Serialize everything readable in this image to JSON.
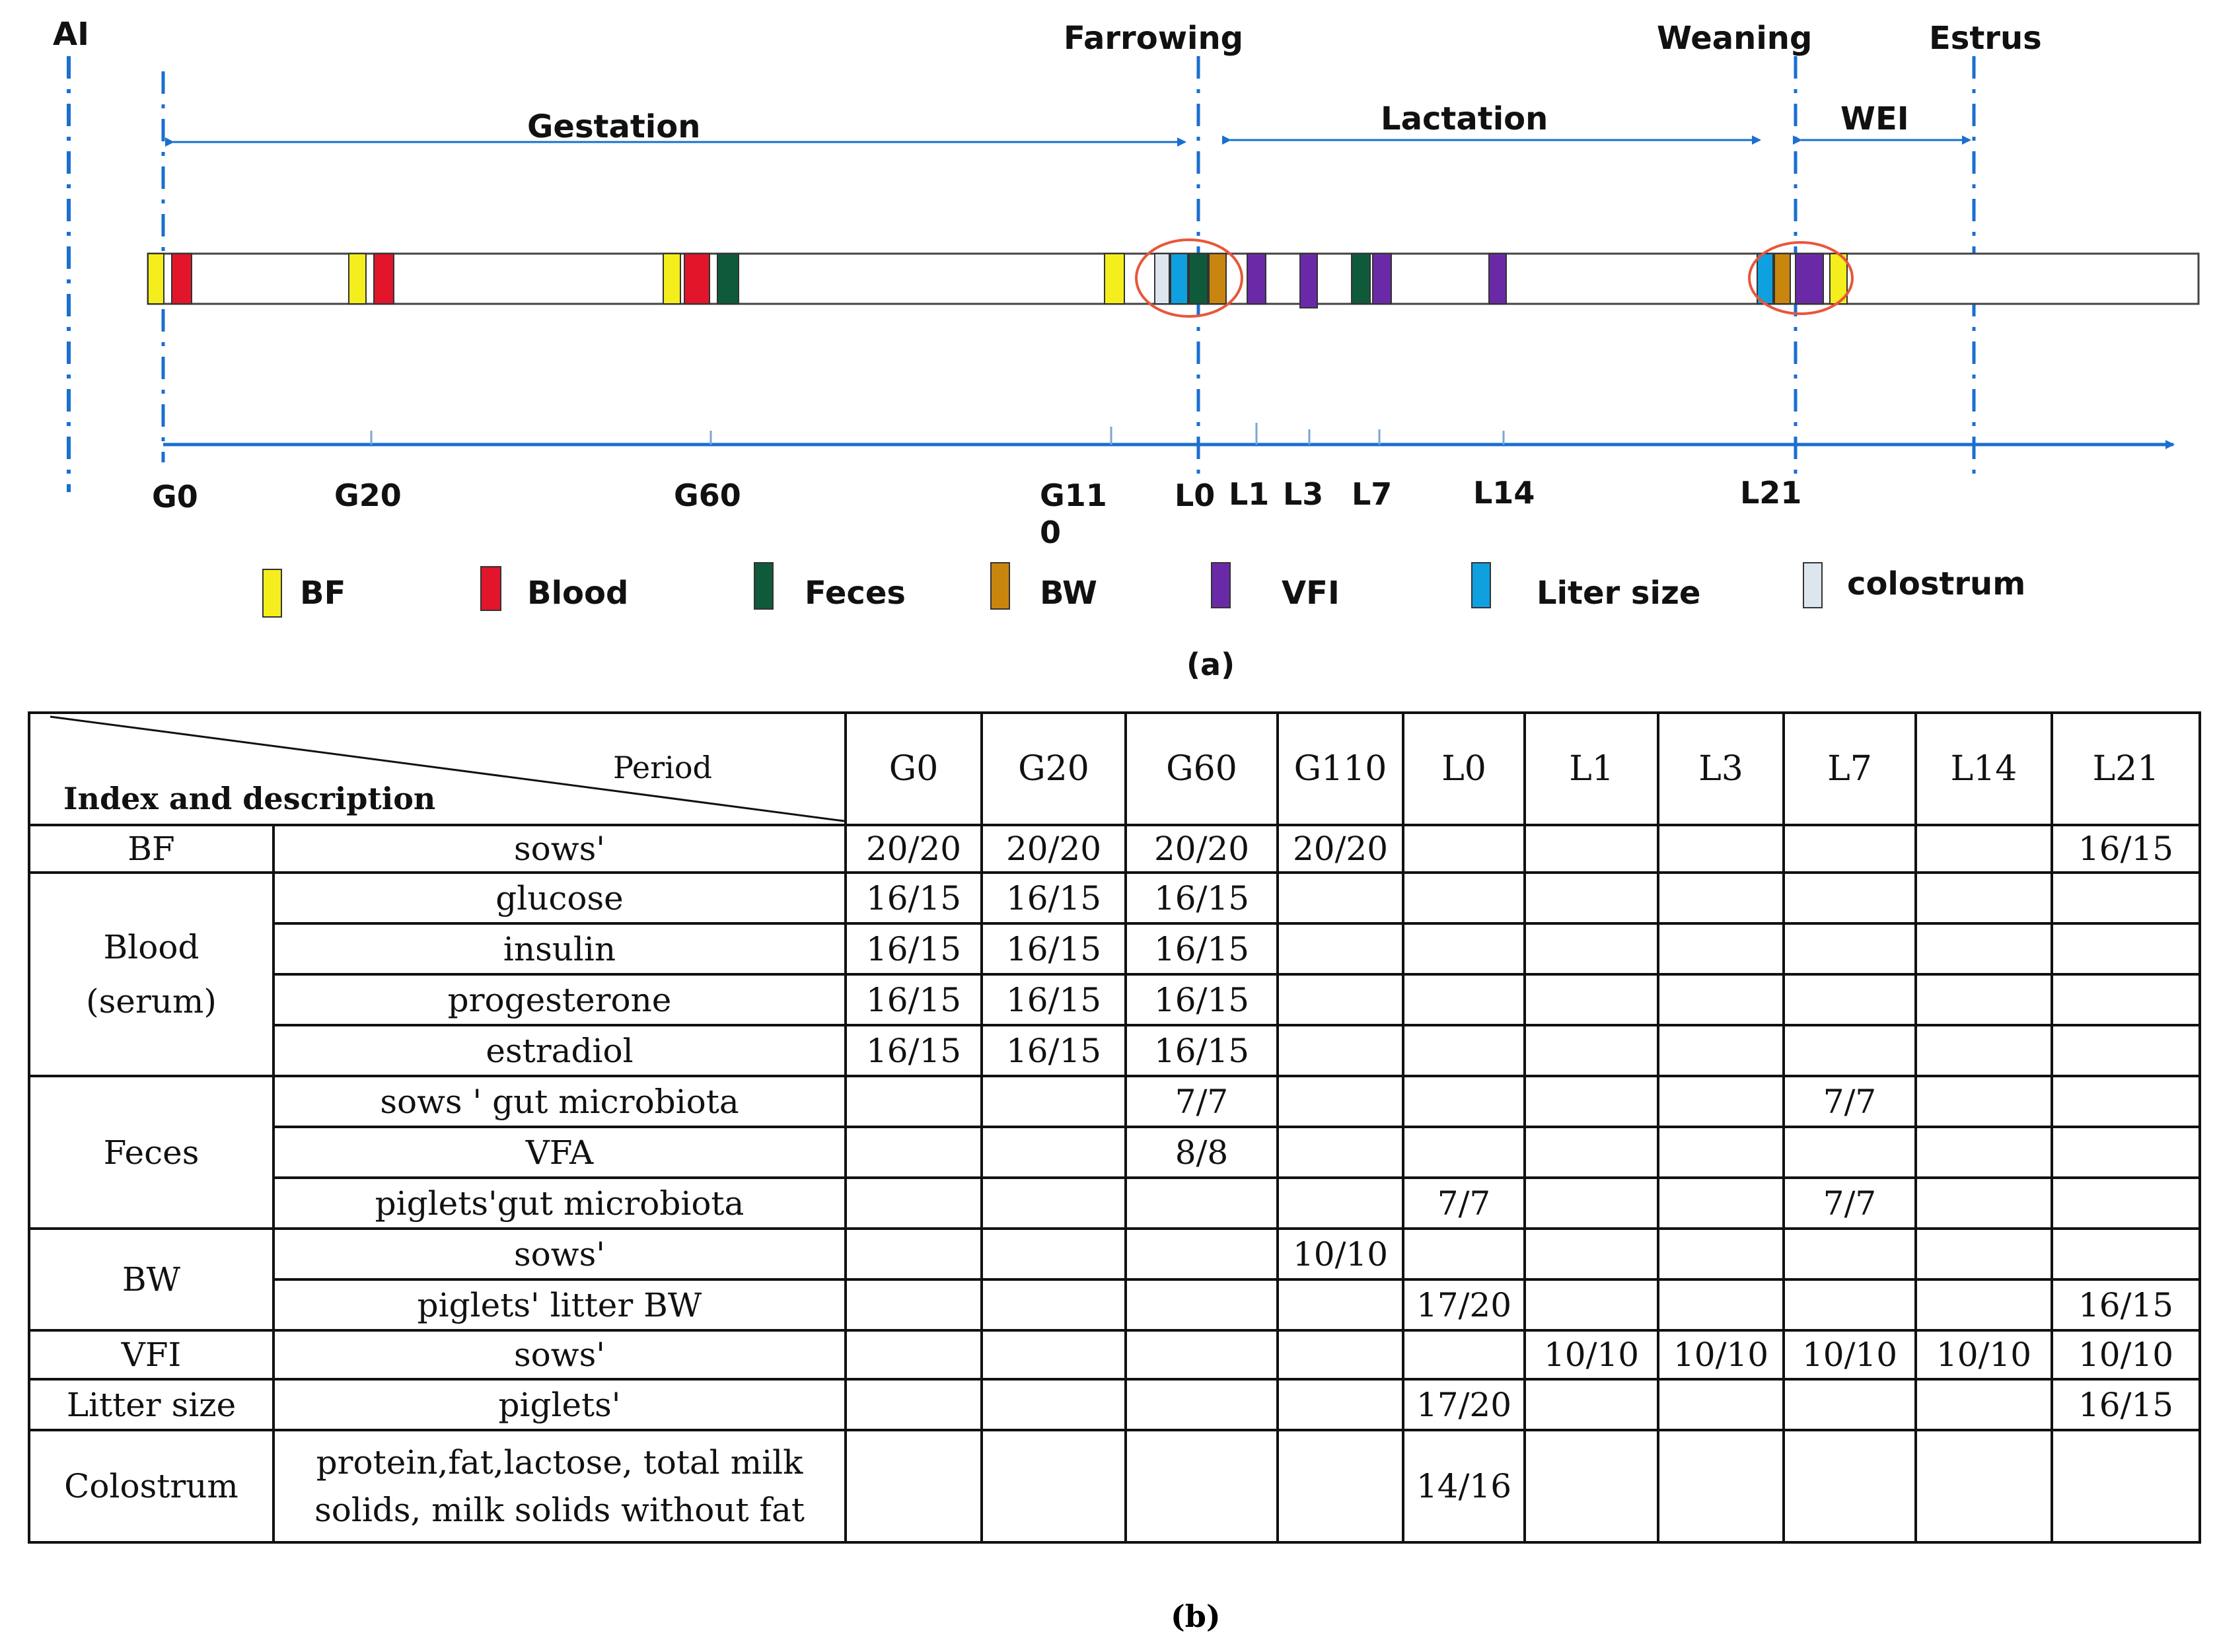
{
  "panel_a": {
    "events": {
      "ai": "AI",
      "farrowing": "Farrowing",
      "weaning": "Weaning",
      "estrus": "Estrus"
    },
    "phases": {
      "gestation": "Gestation",
      "lactation": "Lactation",
      "wei": "WEI"
    },
    "ticks": {
      "g0": "G0",
      "g20": "G20",
      "g60": "G60",
      "g110_line1": "G11",
      "g110_line2": "0",
      "l0": "L0",
      "l1": "L1",
      "l3": "L3",
      "l7": "L7",
      "l14": "L14",
      "l21": "L21"
    },
    "legend": [
      {
        "label": "BF",
        "color": "#f4ee1d"
      },
      {
        "label": "Blood",
        "color": "#e2152b"
      },
      {
        "label": "Feces",
        "color": "#0f5a3a"
      },
      {
        "label": "BW",
        "color": "#c8860f"
      },
      {
        "label": "VFI",
        "color": "#6a2aa8"
      },
      {
        "label": "Liter size",
        "color": "#0fa0e0"
      },
      {
        "label": "colostrum",
        "color": "#dde6ef"
      }
    ],
    "caption": "(a)"
  },
  "panel_b": {
    "corner_period": "Period",
    "corner_index": "Index and description",
    "columns": [
      "G0",
      "G20",
      "G60",
      "G110",
      "L0",
      "L1",
      "L3",
      "L7",
      "L14",
      "L21"
    ],
    "groups": {
      "bf": "BF",
      "blood_line1": "Blood",
      "blood_line2": "(serum)",
      "feces": "Feces",
      "bw": "BW",
      "vfi": "VFI",
      "litter": "Litter size",
      "colostrum": "Colostrum"
    },
    "rows": [
      {
        "desc": "sows'",
        "cells": [
          "20/20",
          "20/20",
          "20/20",
          "20/20",
          "",
          "",
          "",
          "",
          "",
          "16/15"
        ]
      },
      {
        "desc": "glucose",
        "cells": [
          "16/15",
          "16/15",
          "16/15",
          "",
          "",
          "",
          "",
          "",
          "",
          ""
        ]
      },
      {
        "desc": "insulin",
        "cells": [
          "16/15",
          "16/15",
          "16/15",
          "",
          "",
          "",
          "",
          "",
          "",
          ""
        ]
      },
      {
        "desc": "progesterone",
        "cells": [
          "16/15",
          "16/15",
          "16/15",
          "",
          "",
          "",
          "",
          "",
          "",
          ""
        ]
      },
      {
        "desc": "estradiol",
        "cells": [
          "16/15",
          "16/15",
          "16/15",
          "",
          "",
          "",
          "",
          "",
          "",
          ""
        ]
      },
      {
        "desc": "sows ' gut microbiota",
        "cells": [
          "",
          "",
          "7/7",
          "",
          "",
          "",
          "",
          "7/7",
          "",
          ""
        ]
      },
      {
        "desc": "VFA",
        "cells": [
          "",
          "",
          "8/8",
          "",
          "",
          "",
          "",
          "",
          "",
          ""
        ]
      },
      {
        "desc": "piglets'gut microbiota",
        "cells": [
          "",
          "",
          "",
          "",
          "7/7",
          "",
          "",
          "7/7",
          "",
          ""
        ]
      },
      {
        "desc": "sows'",
        "cells": [
          "",
          "",
          "",
          "10/10",
          "",
          "",
          "",
          "",
          "",
          ""
        ]
      },
      {
        "desc": "piglets' litter BW",
        "cells": [
          "",
          "",
          "",
          "",
          "17/20",
          "",
          "",
          "",
          "",
          "16/15"
        ]
      },
      {
        "desc": "sows'",
        "cells": [
          "",
          "",
          "",
          "",
          "",
          "10/10",
          "10/10",
          "10/10",
          "10/10",
          "10/10"
        ]
      },
      {
        "desc": "piglets'",
        "cells": [
          "",
          "",
          "",
          "",
          "17/20",
          "",
          "",
          "",
          "",
          "16/15"
        ]
      },
      {
        "desc_line1": "protein,fat,lactose, total milk",
        "desc_line2": "solids, milk solids without fat",
        "cells": [
          "",
          "",
          "",
          "",
          "14/16",
          "",
          "",
          "",
          "",
          ""
        ]
      }
    ],
    "caption": "(b)"
  }
}
